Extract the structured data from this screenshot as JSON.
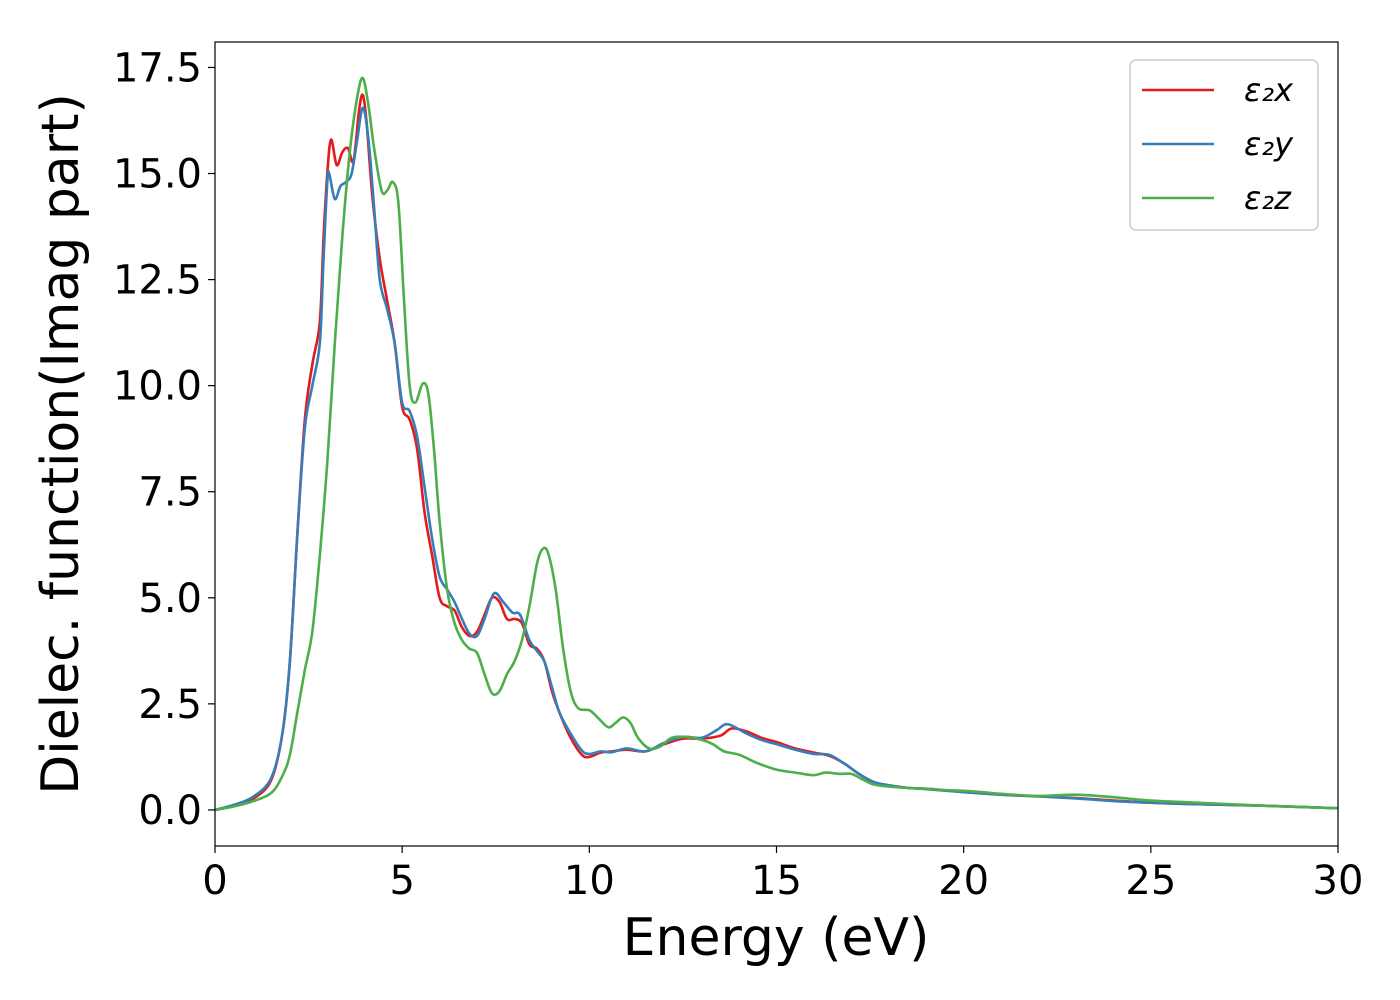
{
  "chart_data": {
    "type": "line",
    "xlabel": "Energy (eV)",
    "ylabel": "Dielec. function(Imag part)",
    "xlim": [
      0,
      30
    ],
    "ylim": [
      -0.85,
      18.1
    ],
    "xticks": [
      0,
      5,
      10,
      15,
      20,
      25,
      30
    ],
    "xtick_labels": [
      "0",
      "5",
      "10",
      "15",
      "20",
      "25",
      "30"
    ],
    "yticks": [
      0,
      2.5,
      5,
      7.5,
      10,
      12.5,
      15,
      17.5
    ],
    "ytick_labels": [
      "0.0",
      "2.5",
      "5.0",
      "7.5",
      "10.0",
      "12.5",
      "15.0",
      "17.5"
    ],
    "grid": false,
    "legend_position": "top-right",
    "series": [
      {
        "name": "ε₂x",
        "color": "#e41a1c",
        "points": [
          [
            0,
            0
          ],
          [
            0.5,
            0.1
          ],
          [
            1.0,
            0.25
          ],
          [
            1.5,
            0.7
          ],
          [
            1.8,
            1.8
          ],
          [
            2.0,
            3.5
          ],
          [
            2.2,
            6.5
          ],
          [
            2.4,
            9.2
          ],
          [
            2.6,
            10.5
          ],
          [
            2.8,
            11.5
          ],
          [
            2.9,
            13.5
          ],
          [
            3.0,
            15.0
          ],
          [
            3.1,
            15.8
          ],
          [
            3.25,
            15.2
          ],
          [
            3.4,
            15.5
          ],
          [
            3.55,
            15.6
          ],
          [
            3.7,
            15.3
          ],
          [
            3.85,
            16.5
          ],
          [
            3.95,
            16.85
          ],
          [
            4.05,
            16.2
          ],
          [
            4.2,
            14.5
          ],
          [
            4.4,
            13.0
          ],
          [
            4.6,
            12.0
          ],
          [
            4.8,
            11.0
          ],
          [
            5.0,
            9.5
          ],
          [
            5.2,
            9.2
          ],
          [
            5.4,
            8.5
          ],
          [
            5.6,
            7.0
          ],
          [
            5.8,
            6.0
          ],
          [
            6.0,
            5.0
          ],
          [
            6.2,
            4.8
          ],
          [
            6.4,
            4.7
          ],
          [
            6.6,
            4.3
          ],
          [
            6.8,
            4.1
          ],
          [
            7.0,
            4.2
          ],
          [
            7.2,
            4.6
          ],
          [
            7.4,
            5.0
          ],
          [
            7.6,
            4.9
          ],
          [
            7.8,
            4.5
          ],
          [
            8.0,
            4.5
          ],
          [
            8.2,
            4.4
          ],
          [
            8.4,
            3.9
          ],
          [
            8.6,
            3.8
          ],
          [
            8.8,
            3.5
          ],
          [
            9.0,
            2.8
          ],
          [
            9.2,
            2.3
          ],
          [
            9.5,
            1.7
          ],
          [
            9.8,
            1.3
          ],
          [
            10.0,
            1.25
          ],
          [
            10.3,
            1.35
          ],
          [
            10.6,
            1.38
          ],
          [
            11.0,
            1.42
          ],
          [
            11.5,
            1.38
          ],
          [
            12.0,
            1.55
          ],
          [
            12.5,
            1.68
          ],
          [
            13.0,
            1.68
          ],
          [
            13.5,
            1.75
          ],
          [
            13.8,
            1.92
          ],
          [
            14.2,
            1.85
          ],
          [
            14.6,
            1.7
          ],
          [
            15.0,
            1.6
          ],
          [
            15.5,
            1.45
          ],
          [
            16.0,
            1.35
          ],
          [
            16.4,
            1.28
          ],
          [
            16.8,
            1.1
          ],
          [
            17.2,
            0.85
          ],
          [
            17.6,
            0.65
          ],
          [
            18.0,
            0.58
          ],
          [
            18.5,
            0.52
          ],
          [
            19.0,
            0.5
          ],
          [
            20.0,
            0.42
          ],
          [
            21.0,
            0.36
          ],
          [
            22.0,
            0.32
          ],
          [
            23.0,
            0.28
          ],
          [
            24.0,
            0.22
          ],
          [
            25.0,
            0.17
          ],
          [
            26.0,
            0.14
          ],
          [
            27.0,
            0.12
          ],
          [
            28.0,
            0.1
          ],
          [
            29.0,
            0.07
          ],
          [
            30.0,
            0.04
          ]
        ]
      },
      {
        "name": "ε₂y",
        "color": "#377eb8",
        "points": [
          [
            0,
            0
          ],
          [
            0.5,
            0.12
          ],
          [
            1.0,
            0.3
          ],
          [
            1.5,
            0.75
          ],
          [
            1.8,
            1.8
          ],
          [
            2.0,
            3.5
          ],
          [
            2.2,
            6.5
          ],
          [
            2.4,
            9.0
          ],
          [
            2.6,
            10.0
          ],
          [
            2.8,
            11.0
          ],
          [
            2.9,
            13.0
          ],
          [
            3.0,
            14.8
          ],
          [
            3.05,
            15.0
          ],
          [
            3.2,
            14.4
          ],
          [
            3.35,
            14.7
          ],
          [
            3.5,
            14.8
          ],
          [
            3.65,
            15.0
          ],
          [
            3.8,
            15.8
          ],
          [
            3.95,
            16.55
          ],
          [
            4.1,
            15.8
          ],
          [
            4.25,
            14.2
          ],
          [
            4.4,
            12.5
          ],
          [
            4.6,
            11.8
          ],
          [
            4.8,
            11.0
          ],
          [
            5.0,
            9.6
          ],
          [
            5.2,
            9.4
          ],
          [
            5.4,
            8.8
          ],
          [
            5.6,
            7.6
          ],
          [
            5.8,
            6.4
          ],
          [
            6.0,
            5.5
          ],
          [
            6.2,
            5.2
          ],
          [
            6.4,
            4.9
          ],
          [
            6.6,
            4.5
          ],
          [
            6.8,
            4.15
          ],
          [
            7.0,
            4.1
          ],
          [
            7.2,
            4.5
          ],
          [
            7.45,
            5.1
          ],
          [
            7.7,
            4.9
          ],
          [
            7.95,
            4.65
          ],
          [
            8.15,
            4.6
          ],
          [
            8.4,
            4.0
          ],
          [
            8.6,
            3.75
          ],
          [
            8.8,
            3.5
          ],
          [
            9.0,
            2.9
          ],
          [
            9.2,
            2.3
          ],
          [
            9.5,
            1.8
          ],
          [
            9.8,
            1.4
          ],
          [
            10.0,
            1.32
          ],
          [
            10.3,
            1.38
          ],
          [
            10.6,
            1.36
          ],
          [
            11.0,
            1.45
          ],
          [
            11.5,
            1.38
          ],
          [
            12.0,
            1.58
          ],
          [
            12.5,
            1.72
          ],
          [
            13.0,
            1.7
          ],
          [
            13.4,
            1.88
          ],
          [
            13.7,
            2.02
          ],
          [
            14.2,
            1.8
          ],
          [
            14.6,
            1.65
          ],
          [
            15.0,
            1.55
          ],
          [
            15.5,
            1.42
          ],
          [
            16.0,
            1.32
          ],
          [
            16.4,
            1.3
          ],
          [
            16.8,
            1.1
          ],
          [
            17.2,
            0.85
          ],
          [
            17.6,
            0.66
          ],
          [
            18.0,
            0.58
          ],
          [
            18.5,
            0.52
          ],
          [
            19.0,
            0.49
          ],
          [
            20.0,
            0.42
          ],
          [
            21.0,
            0.36
          ],
          [
            22.0,
            0.32
          ],
          [
            23.0,
            0.27
          ],
          [
            24.0,
            0.21
          ],
          [
            25.0,
            0.17
          ],
          [
            26.0,
            0.14
          ],
          [
            27.0,
            0.12
          ],
          [
            28.0,
            0.1
          ],
          [
            29.0,
            0.07
          ],
          [
            30.0,
            0.04
          ]
        ]
      },
      {
        "name": "ε₂z",
        "color": "#4daf4a",
        "points": [
          [
            0,
            0
          ],
          [
            0.5,
            0.08
          ],
          [
            1.0,
            0.2
          ],
          [
            1.5,
            0.4
          ],
          [
            1.8,
            0.8
          ],
          [
            2.0,
            1.3
          ],
          [
            2.2,
            2.3
          ],
          [
            2.4,
            3.3
          ],
          [
            2.6,
            4.2
          ],
          [
            2.8,
            6.0
          ],
          [
            3.0,
            8.2
          ],
          [
            3.2,
            11.0
          ],
          [
            3.4,
            13.5
          ],
          [
            3.6,
            15.5
          ],
          [
            3.8,
            16.8
          ],
          [
            3.95,
            17.25
          ],
          [
            4.1,
            16.6
          ],
          [
            4.25,
            15.6
          ],
          [
            4.45,
            14.6
          ],
          [
            4.6,
            14.6
          ],
          [
            4.75,
            14.8
          ],
          [
            4.9,
            14.3
          ],
          [
            5.05,
            12.0
          ],
          [
            5.2,
            10.0
          ],
          [
            5.35,
            9.6
          ],
          [
            5.55,
            10.05
          ],
          [
            5.7,
            9.8
          ],
          [
            5.85,
            8.5
          ],
          [
            6.0,
            6.8
          ],
          [
            6.2,
            5.2
          ],
          [
            6.4,
            4.4
          ],
          [
            6.6,
            4.0
          ],
          [
            6.8,
            3.8
          ],
          [
            7.0,
            3.7
          ],
          [
            7.2,
            3.2
          ],
          [
            7.4,
            2.75
          ],
          [
            7.6,
            2.8
          ],
          [
            7.8,
            3.2
          ],
          [
            8.0,
            3.5
          ],
          [
            8.2,
            4.0
          ],
          [
            8.4,
            4.8
          ],
          [
            8.6,
            5.8
          ],
          [
            8.75,
            6.15
          ],
          [
            8.9,
            6.05
          ],
          [
            9.1,
            5.2
          ],
          [
            9.3,
            3.8
          ],
          [
            9.5,
            2.8
          ],
          [
            9.7,
            2.4
          ],
          [
            10.0,
            2.35
          ],
          [
            10.2,
            2.2
          ],
          [
            10.5,
            1.95
          ],
          [
            10.7,
            2.05
          ],
          [
            10.9,
            2.18
          ],
          [
            11.1,
            2.05
          ],
          [
            11.3,
            1.7
          ],
          [
            11.6,
            1.45
          ],
          [
            11.9,
            1.5
          ],
          [
            12.2,
            1.7
          ],
          [
            12.6,
            1.72
          ],
          [
            13.0,
            1.65
          ],
          [
            13.3,
            1.55
          ],
          [
            13.6,
            1.38
          ],
          [
            14.0,
            1.3
          ],
          [
            14.5,
            1.1
          ],
          [
            15.0,
            0.95
          ],
          [
            15.5,
            0.88
          ],
          [
            16.0,
            0.82
          ],
          [
            16.3,
            0.88
          ],
          [
            16.7,
            0.85
          ],
          [
            17.0,
            0.85
          ],
          [
            17.3,
            0.72
          ],
          [
            17.6,
            0.6
          ],
          [
            18.0,
            0.55
          ],
          [
            18.5,
            0.52
          ],
          [
            19.0,
            0.5
          ],
          [
            19.5,
            0.47
          ],
          [
            20.0,
            0.45
          ],
          [
            20.5,
            0.42
          ],
          [
            21.0,
            0.38
          ],
          [
            22.0,
            0.33
          ],
          [
            23.0,
            0.36
          ],
          [
            24.0,
            0.3
          ],
          [
            25.0,
            0.22
          ],
          [
            26.0,
            0.18
          ],
          [
            27.0,
            0.14
          ],
          [
            28.0,
            0.1
          ],
          [
            29.0,
            0.07
          ],
          [
            30.0,
            0.04
          ]
        ]
      }
    ]
  }
}
